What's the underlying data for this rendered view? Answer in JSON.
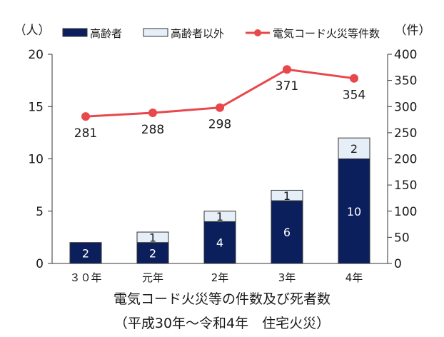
{
  "chart_data": {
    "type": "bar+line",
    "categories": [
      "３０年",
      "元年",
      "2年",
      "3年",
      "4年"
    ],
    "left_axis": {
      "unit": "（人）",
      "min": 0,
      "max": 20,
      "ticks": [
        0,
        5,
        10,
        15,
        20
      ]
    },
    "right_axis": {
      "unit": "（件）",
      "min": 0,
      "max": 400,
      "ticks": [
        0,
        50,
        100,
        150,
        200,
        250,
        300,
        350,
        400
      ]
    },
    "series": [
      {
        "name": "高齢者",
        "type": "stacked-bar",
        "axis": "left",
        "values": [
          2,
          2,
          4,
          6,
          10
        ],
        "labels": [
          "2",
          "2",
          "4",
          "6",
          "10"
        ],
        "color": "#0b1f5c"
      },
      {
        "name": "高齢者以外",
        "type": "stacked-bar",
        "axis": "left",
        "values": [
          0,
          1,
          1,
          1,
          2
        ],
        "labels": [
          "",
          "1",
          "1",
          "1",
          "2"
        ],
        "color": "#e6eef8"
      },
      {
        "name": "電気コード火災等件数",
        "type": "line",
        "axis": "right",
        "values": [
          281,
          288,
          298,
          371,
          354
        ],
        "labels": [
          "281",
          "288",
          "298",
          "371",
          "354"
        ],
        "color": "#e8474b"
      }
    ],
    "legend_placement": "top",
    "grid": false
  },
  "caption": {
    "line1": "電気コード火災等の件数及び死者数",
    "line2": "（平成30年〜令和4年　住宅火災）"
  }
}
